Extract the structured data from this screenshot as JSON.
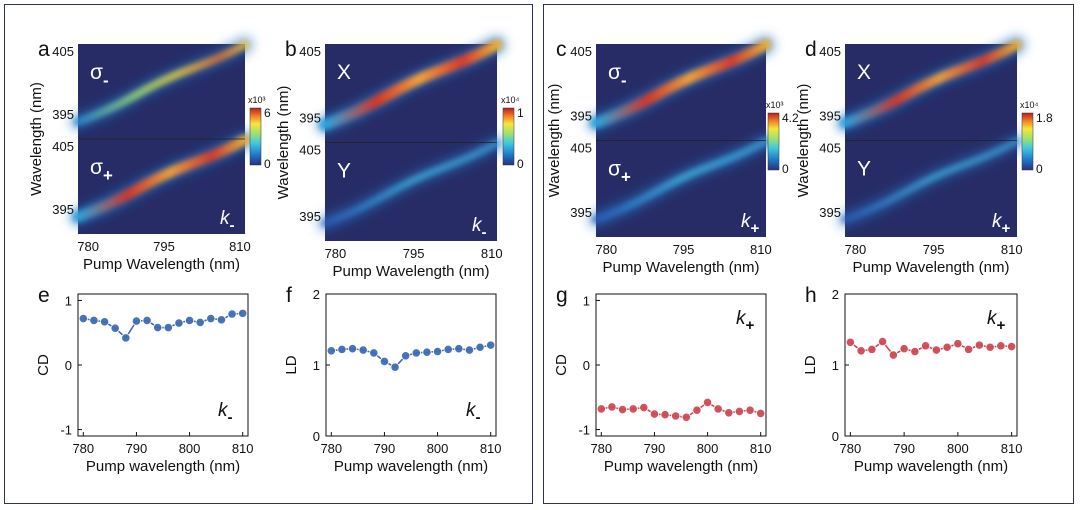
{
  "colors": {
    "map_background": "#272c66",
    "frame": "#2d3550",
    "blue_series": "#3f6db5",
    "red_series": "#cf4a55"
  },
  "chart_data": [
    {
      "id": "a",
      "type": "heatmap",
      "panel_label": "a",
      "xlabel": "Pump Wavelength (nm)",
      "ylabel": "Wavelength (nm)",
      "xlim": [
        778,
        811
      ],
      "x_ticks": [
        "780",
        "795",
        "810"
      ],
      "subpanels": [
        {
          "label": "σ",
          "subscript": "-",
          "y_ticks": [
            "405",
            "395"
          ],
          "relative_intensity": 0.5
        },
        {
          "label": "σ",
          "subscript": "+",
          "y_ticks": [
            "405",
            "395"
          ],
          "relative_intensity": 0.9
        }
      ],
      "corner_label": {
        "text": "k",
        "subscript": "-"
      },
      "colorbar": {
        "multiplier": "x10³",
        "max": "6",
        "min": "0"
      }
    },
    {
      "id": "b",
      "type": "heatmap",
      "panel_label": "b",
      "xlabel": "Pump Wavelength (nm)",
      "ylabel": "Wavelength (nm)",
      "xlim": [
        778,
        811
      ],
      "x_ticks": [
        "780",
        "795",
        "810"
      ],
      "subpanels": [
        {
          "label": "X",
          "subscript": "",
          "y_ticks": [
            "405",
            "395"
          ],
          "relative_intensity": 1.0
        },
        {
          "label": "Y",
          "subscript": "",
          "y_ticks": [
            "405",
            "395"
          ],
          "relative_intensity": 0.3
        }
      ],
      "corner_label": {
        "text": "k",
        "subscript": "-"
      },
      "colorbar": {
        "multiplier": "x10⁴",
        "max": "1",
        "min": "0"
      }
    },
    {
      "id": "c",
      "type": "heatmap",
      "panel_label": "c",
      "xlabel": "Pump Wavelength (nm)",
      "ylabel": "Wavelength (nm)",
      "xlim": [
        778,
        811
      ],
      "x_ticks": [
        "780",
        "795",
        "810"
      ],
      "subpanels": [
        {
          "label": "σ",
          "subscript": "-",
          "y_ticks": [
            "405",
            "395"
          ],
          "relative_intensity": 0.95
        },
        {
          "label": "σ",
          "subscript": "+",
          "y_ticks": [
            "405",
            "395"
          ],
          "relative_intensity": 0.4
        }
      ],
      "corner_label": {
        "text": "k",
        "subscript": "+"
      },
      "colorbar": {
        "multiplier": "x10³",
        "max": "4.2",
        "min": "0"
      }
    },
    {
      "id": "d",
      "type": "heatmap",
      "panel_label": "d",
      "xlabel": "Pump Wavelength (nm)",
      "ylabel": "Wavelength (nm)",
      "xlim": [
        778,
        811
      ],
      "x_ticks": [
        "780",
        "795",
        "810"
      ],
      "subpanels": [
        {
          "label": "X",
          "subscript": "",
          "y_ticks": [
            "405",
            "395"
          ],
          "relative_intensity": 0.85
        },
        {
          "label": "Y",
          "subscript": "",
          "y_ticks": [
            "405",
            "395"
          ],
          "relative_intensity": 0.25
        }
      ],
      "corner_label": {
        "text": "k",
        "subscript": "+"
      },
      "colorbar": {
        "multiplier": "x10⁴",
        "max": "1.8",
        "min": "0"
      }
    },
    {
      "id": "e",
      "type": "line",
      "panel_label": "e",
      "xlabel": "Pump wavelength (nm)",
      "ylabel": "CD",
      "xlim": [
        779,
        811
      ],
      "ylim": [
        -1.1,
        1.1
      ],
      "x_ticks": [
        780,
        790,
        800,
        810
      ],
      "y_ticks": [
        -1,
        0,
        1
      ],
      "corner_label": {
        "text": "k",
        "subscript": "-",
        "position": "bottom-right"
      },
      "color": "blue",
      "x": [
        780,
        782,
        784,
        786,
        788,
        790,
        792,
        794,
        796,
        798,
        800,
        802,
        804,
        806,
        808,
        810
      ],
      "y": [
        0.72,
        0.69,
        0.67,
        0.57,
        0.42,
        0.68,
        0.69,
        0.58,
        0.58,
        0.65,
        0.69,
        0.66,
        0.72,
        0.7,
        0.79,
        0.8
      ]
    },
    {
      "id": "f",
      "type": "line",
      "panel_label": "f",
      "xlabel": "Pump wavelength (nm)",
      "ylabel": "LD",
      "xlim": [
        779,
        811
      ],
      "ylim": [
        0,
        2
      ],
      "x_ticks": [
        780,
        790,
        800,
        810
      ],
      "y_ticks": [
        0,
        1,
        2
      ],
      "corner_label": {
        "text": "k",
        "subscript": "-",
        "position": "bottom-right"
      },
      "color": "blue",
      "x": [
        780,
        782,
        784,
        786,
        788,
        790,
        792,
        794,
        796,
        798,
        800,
        802,
        804,
        806,
        808,
        810
      ],
      "y": [
        1.2,
        1.22,
        1.23,
        1.21,
        1.17,
        1.05,
        0.97,
        1.13,
        1.17,
        1.18,
        1.19,
        1.22,
        1.23,
        1.21,
        1.25,
        1.28
      ]
    },
    {
      "id": "g",
      "type": "line",
      "panel_label": "g",
      "xlabel": "Pump wavelength (nm)",
      "ylabel": "CD",
      "xlim": [
        779,
        811
      ],
      "ylim": [
        -1.1,
        1.1
      ],
      "x_ticks": [
        780,
        790,
        800,
        810
      ],
      "y_ticks": [
        -1,
        0,
        1
      ],
      "corner_label": {
        "text": "k",
        "subscript": "+",
        "position": "top-right"
      },
      "color": "red",
      "x": [
        780,
        782,
        784,
        786,
        788,
        790,
        792,
        794,
        796,
        798,
        800,
        802,
        804,
        806,
        808,
        810
      ],
      "y": [
        -0.68,
        -0.65,
        -0.69,
        -0.68,
        -0.66,
        -0.76,
        -0.77,
        -0.79,
        -0.81,
        -0.7,
        -0.58,
        -0.68,
        -0.74,
        -0.72,
        -0.7,
        -0.75
      ]
    },
    {
      "id": "h",
      "type": "line",
      "panel_label": "h",
      "xlabel": "Pump wavelength (nm)",
      "ylabel": "LD",
      "xlim": [
        779,
        811
      ],
      "ylim": [
        0,
        2
      ],
      "x_ticks": [
        780,
        790,
        800,
        810
      ],
      "y_ticks": [
        0,
        1,
        2
      ],
      "corner_label": {
        "text": "k",
        "subscript": "+",
        "position": "top-right"
      },
      "color": "red",
      "x": [
        780,
        782,
        784,
        786,
        788,
        790,
        792,
        794,
        796,
        798,
        800,
        802,
        804,
        806,
        808,
        810
      ],
      "y": [
        1.32,
        1.2,
        1.22,
        1.33,
        1.14,
        1.23,
        1.19,
        1.27,
        1.21,
        1.25,
        1.3,
        1.22,
        1.28,
        1.25,
        1.27,
        1.26
      ]
    }
  ]
}
